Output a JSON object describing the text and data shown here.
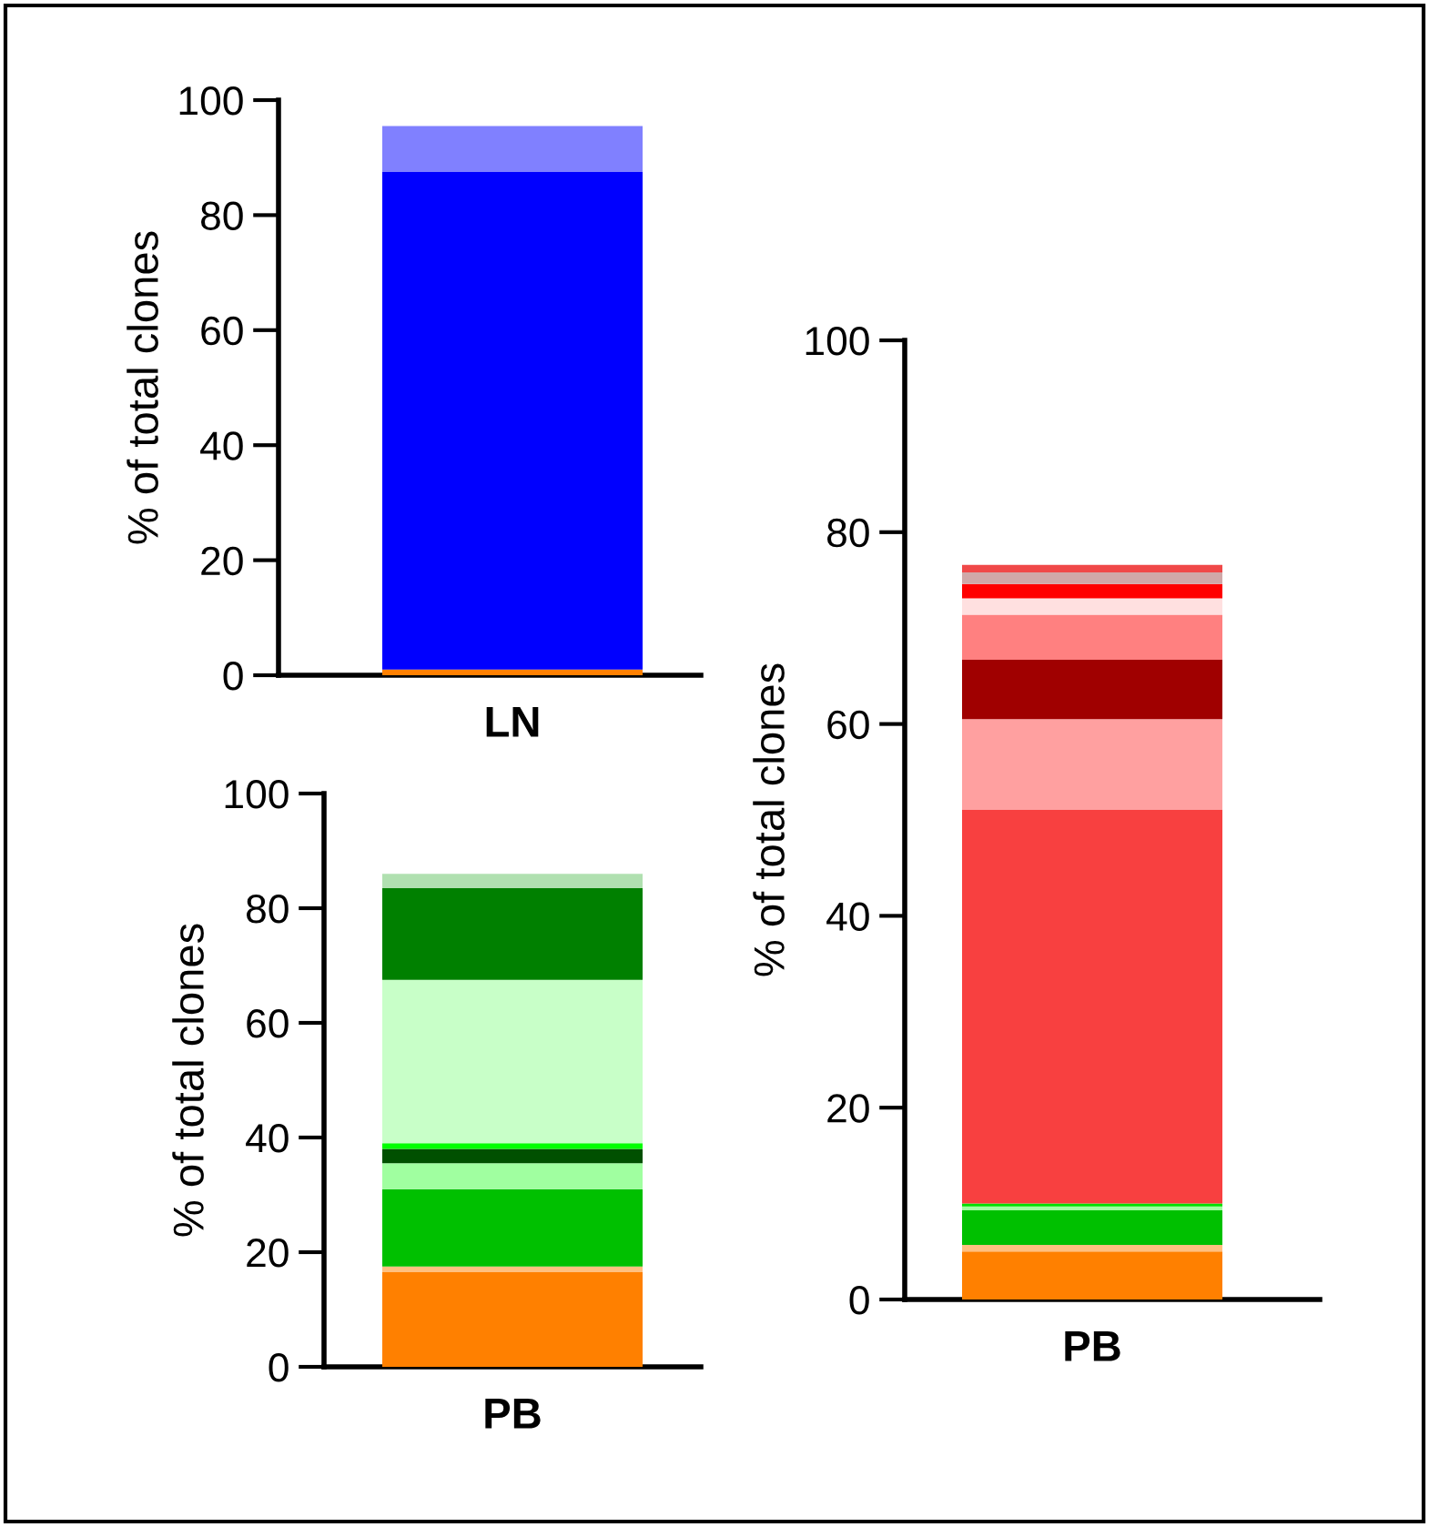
{
  "chart_data": [
    {
      "type": "bar",
      "stacked": true,
      "categories": [
        "LN"
      ],
      "ylabel": "% of total clones",
      "ylim": [
        0,
        100
      ],
      "yticks": [
        0,
        20,
        40,
        60,
        80,
        100
      ],
      "grid": false,
      "legend": false,
      "series": [
        {
          "color": "#ff8000",
          "values": [
            1
          ]
        },
        {
          "color": "#0000ff",
          "values": [
            86.5
          ]
        },
        {
          "color": "#8080ff",
          "values": [
            8
          ]
        }
      ]
    },
    {
      "type": "bar",
      "stacked": true,
      "categories": [
        "PB"
      ],
      "ylabel": "% of total clones",
      "ylim": [
        0,
        100
      ],
      "yticks": [
        0,
        20,
        40,
        60,
        80,
        100
      ],
      "grid": false,
      "legend": false,
      "series": [
        {
          "color": "#ff8000",
          "values": [
            16.5
          ]
        },
        {
          "color": "#ffc080",
          "values": [
            1
          ]
        },
        {
          "color": "#00c000",
          "values": [
            13.5
          ]
        },
        {
          "color": "#a0ffa0",
          "values": [
            4.5
          ]
        },
        {
          "color": "#005000",
          "values": [
            2.5
          ]
        },
        {
          "color": "#00ff00",
          "values": [
            1
          ]
        },
        {
          "color": "#c8ffc8",
          "values": [
            28.5
          ]
        },
        {
          "color": "#008000",
          "values": [
            16
          ]
        },
        {
          "color": "#b0e0b0",
          "values": [
            2.5
          ]
        }
      ]
    },
    {
      "type": "bar",
      "stacked": true,
      "categories": [
        "PB"
      ],
      "ylabel": "% of total clones",
      "ylim": [
        0,
        100
      ],
      "yticks": [
        0,
        20,
        40,
        60,
        80,
        100
      ],
      "grid": false,
      "legend": false,
      "series": [
        {
          "color": "#ff8000",
          "values": [
            5
          ]
        },
        {
          "color": "#ffc080",
          "values": [
            0.7
          ]
        },
        {
          "color": "#00c000",
          "values": [
            3.6
          ]
        },
        {
          "color": "#a0ffa0",
          "values": [
            0.4
          ]
        },
        {
          "color": "#00e000",
          "values": [
            0.3
          ]
        },
        {
          "color": "#f84040",
          "values": [
            41.1
          ]
        },
        {
          "color": "#ffa0a0",
          "values": [
            9.4
          ]
        },
        {
          "color": "#a00000",
          "values": [
            6.2
          ]
        },
        {
          "color": "#ff8080",
          "values": [
            4.7
          ]
        },
        {
          "color": "#ffe0e0",
          "values": [
            1.7
          ]
        },
        {
          "color": "#ff0000",
          "values": [
            1.5
          ]
        },
        {
          "color": "#d0a8a8",
          "values": [
            1.2
          ]
        },
        {
          "color": "#f04848",
          "values": [
            0.8
          ]
        }
      ]
    }
  ]
}
